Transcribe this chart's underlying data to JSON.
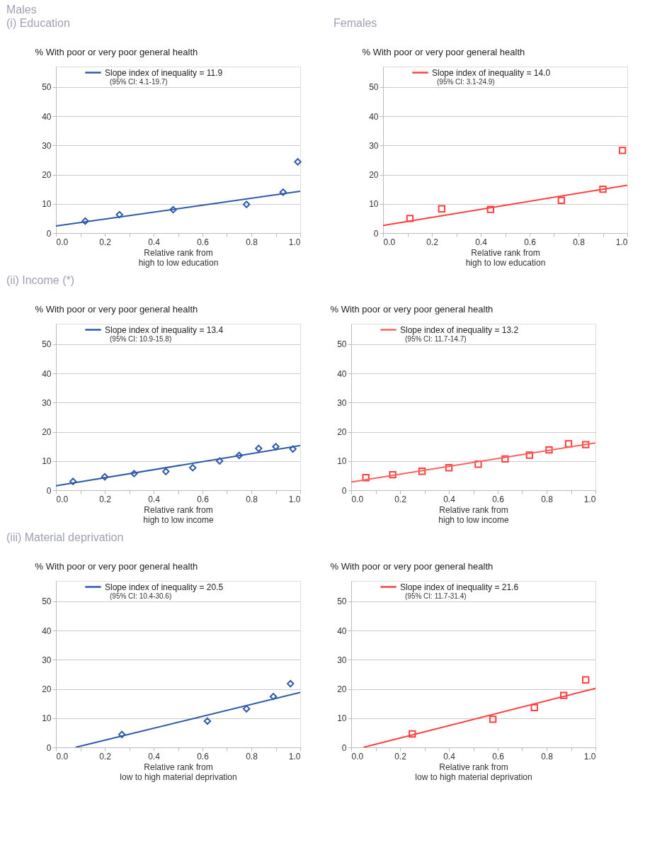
{
  "chart_data": [
    {
      "type": "scatter",
      "title": "Males",
      "subtitle": "(i) Education",
      "ylabel": "% With poor or very poor general health",
      "xlabel": "Relative rank from\nhigh to low education",
      "xlim": [
        0,
        1
      ],
      "ylim": [
        0,
        57
      ],
      "xticks": [
        {
          "value": 0,
          "label": "0.0"
        },
        {
          "value": 0.1,
          "label": null
        },
        {
          "value": 0.2,
          "label": "0.2"
        },
        {
          "value": 0.3,
          "label": null
        },
        {
          "value": 0.4,
          "label": "0.4"
        },
        {
          "value": 0.5,
          "label": null
        },
        {
          "value": 0.6,
          "label": "0.6"
        },
        {
          "value": 0.7,
          "label": null
        },
        {
          "value": 0.8,
          "label": "0.8"
        },
        {
          "value": 0.9,
          "label": null
        },
        {
          "value": 1,
          "label": "1.0"
        }
      ],
      "yticks": [
        0,
        10,
        20,
        30,
        40,
        50
      ],
      "grid": "y",
      "legend": "top",
      "annotations": [
        "(95% CI:  4.1-19.7)"
      ],
      "series": [
        {
          "marker": "diamond",
          "color": "#2e5aa8",
          "x": [
            0.12,
            0.26,
            0.48,
            0.78,
            0.93,
            0.99
          ],
          "values": [
            4.1,
            6.3,
            8.0,
            9.8,
            14.0,
            24.4
          ]
        },
        {
          "type": "line",
          "marker": "none",
          "name": "Slope index of inequality = 11.9",
          "color": "#2e5aa8",
          "x": [
            0,
            1
          ],
          "values": [
            2.4,
            14.3
          ]
        }
      ]
    },
    {
      "type": "scatter",
      "title": "Females",
      "ylabel": "% With poor or very poor general health",
      "xlabel": "Relative rank from\nhigh to low education",
      "xlim": [
        0,
        1
      ],
      "ylim": [
        0,
        57
      ],
      "xticks": [
        {
          "value": 0,
          "label": "0.0"
        },
        {
          "value": 0.1,
          "label": null
        },
        {
          "value": 0.2,
          "label": "0.2"
        },
        {
          "value": 0.3,
          "label": null
        },
        {
          "value": 0.4,
          "label": "0.4"
        },
        {
          "value": 0.5,
          "label": null
        },
        {
          "value": 0.6,
          "label": "0.6"
        },
        {
          "value": 0.7,
          "label": null
        },
        {
          "value": 0.8,
          "label": "0.8"
        },
        {
          "value": 0.9,
          "label": null
        },
        {
          "value": 1,
          "label": "1.0"
        }
      ],
      "yticks": [
        0,
        10,
        20,
        30,
        40,
        50
      ],
      "grid": "y",
      "legend": "top",
      "annotations": [
        "(95% CI:  3.1-24.9)"
      ],
      "series": [
        {
          "marker": "square",
          "color": "#ff4040",
          "x": [
            0.11,
            0.24,
            0.44,
            0.73,
            0.9,
            0.98
          ],
          "values": [
            5.0,
            8.3,
            8.1,
            11.2,
            15.0,
            28.3
          ]
        },
        {
          "type": "line",
          "marker": "none",
          "name": "Slope index of inequality = 14.0",
          "color": "#ff4040",
          "x": [
            0,
            1
          ],
          "values": [
            2.6,
            16.4
          ]
        }
      ]
    },
    {
      "type": "scatter",
      "title": "(ii) Income (*)",
      "ylabel": "% With poor or very poor general health",
      "xlabel": "Relative rank from\nhigh to low income",
      "xlim": [
        0,
        1
      ],
      "ylim": [
        0,
        57
      ],
      "xticks": [
        {
          "value": 0,
          "label": "0.0"
        },
        {
          "value": 0.1,
          "label": null
        },
        {
          "value": 0.2,
          "label": "0.2"
        },
        {
          "value": 0.3,
          "label": null
        },
        {
          "value": 0.4,
          "label": "0.4"
        },
        {
          "value": 0.5,
          "label": null
        },
        {
          "value": 0.6,
          "label": "0.6"
        },
        {
          "value": 0.7,
          "label": null
        },
        {
          "value": 0.8,
          "label": "0.8"
        },
        {
          "value": 0.9,
          "label": null
        },
        {
          "value": 1,
          "label": "1.0"
        }
      ],
      "yticks": [
        0,
        10,
        20,
        30,
        40,
        50
      ],
      "grid": "y",
      "legend": "top",
      "annotations": [
        "(95% CI:  10.9-15.8)"
      ],
      "series": [
        {
          "marker": "diamond",
          "color": "#2e5aa8",
          "x": [
            0.07,
            0.2,
            0.32,
            0.45,
            0.56,
            0.67,
            0.75,
            0.83,
            0.9,
            0.97
          ],
          "values": [
            3.0,
            4.6,
            5.7,
            6.4,
            7.7,
            10.0,
            11.9,
            14.3,
            14.9,
            14.1
          ]
        },
        {
          "type": "line",
          "marker": "none",
          "name": "Slope index of inequality = 13.4",
          "color": "#2e5aa8",
          "x": [
            0,
            1
          ],
          "values": [
            1.5,
            15.3
          ]
        }
      ]
    },
    {
      "type": "scatter",
      "ylabel": "% With poor or very poor general health",
      "xlabel": "Relative rank from\nhigh to low income",
      "xlim": [
        0,
        1
      ],
      "ylim": [
        0,
        57
      ],
      "xticks": [
        {
          "value": 0,
          "label": "0.0"
        },
        {
          "value": 0.1,
          "label": null
        },
        {
          "value": 0.2,
          "label": "0.2"
        },
        {
          "value": 0.3,
          "label": null
        },
        {
          "value": 0.4,
          "label": "0.4"
        },
        {
          "value": 0.5,
          "label": null
        },
        {
          "value": 0.6,
          "label": "0.6"
        },
        {
          "value": 0.7,
          "label": null
        },
        {
          "value": 0.8,
          "label": "0.8"
        },
        {
          "value": 0.9,
          "label": null
        },
        {
          "value": 1,
          "label": "1.0"
        }
      ],
      "yticks": [
        0,
        10,
        20,
        30,
        40,
        50
      ],
      "grid": "y",
      "legend": "top",
      "annotations": [
        "(95% CI:  11.7-14.7)"
      ],
      "series": [
        {
          "marker": "square",
          "color": "#ff4040",
          "x": [
            0.06,
            0.17,
            0.29,
            0.4,
            0.52,
            0.63,
            0.73,
            0.81,
            0.89,
            0.96
          ],
          "values": [
            4.3,
            5.3,
            6.5,
            7.7,
            8.9,
            10.7,
            12.0,
            13.8,
            15.9,
            15.6
          ]
        },
        {
          "type": "line",
          "marker": "none",
          "name": "Slope index of inequality = 13.2",
          "color": "#ff6060",
          "x": [
            0,
            1
          ],
          "values": [
            2.8,
            16.2
          ]
        }
      ]
    },
    {
      "type": "scatter",
      "title": "(iii) Material deprivation",
      "ylabel": "% With poor or very poor general health",
      "xlabel": "Relative rank from\nlow  to high material deprivation",
      "xlim": [
        0,
        1
      ],
      "ylim": [
        0,
        57
      ],
      "xticks": [
        {
          "value": 0,
          "label": "0.0"
        },
        {
          "value": 0.1,
          "label": null
        },
        {
          "value": 0.2,
          "label": "0.2"
        },
        {
          "value": 0.3,
          "label": null
        },
        {
          "value": 0.4,
          "label": "0.4"
        },
        {
          "value": 0.5,
          "label": null
        },
        {
          "value": 0.6,
          "label": "0.6"
        },
        {
          "value": 0.7,
          "label": null
        },
        {
          "value": 0.8,
          "label": "0.8"
        },
        {
          "value": 0.9,
          "label": null
        },
        {
          "value": 1,
          "label": "1.0"
        }
      ],
      "yticks": [
        0,
        10,
        20,
        30,
        40,
        50
      ],
      "grid": "y",
      "legend": "top",
      "annotations": [
        "(95% CI:  10.4-30.6)"
      ],
      "series": [
        {
          "marker": "diamond",
          "color": "#2e5aa8",
          "x": [
            0.27,
            0.62,
            0.78,
            0.89,
            0.96
          ],
          "values": [
            4.4,
            9.0,
            13.2,
            17.4,
            21.8
          ]
        },
        {
          "type": "line",
          "marker": "none",
          "name": "Slope index of inequality = 20.5",
          "color": "#2e5aa8",
          "x": [
            0.08,
            1
          ],
          "values": [
            0,
            18.8
          ]
        }
      ]
    },
    {
      "type": "scatter",
      "ylabel": "% With poor or very poor general health",
      "xlabel": "Relative rank from\nlow  to high material deprivation",
      "xlim": [
        0,
        1
      ],
      "ylim": [
        0,
        57
      ],
      "xticks": [
        {
          "value": 0,
          "label": "0.0"
        },
        {
          "value": 0.1,
          "label": null
        },
        {
          "value": 0.2,
          "label": "0.2"
        },
        {
          "value": 0.3,
          "label": null
        },
        {
          "value": 0.4,
          "label": "0.4"
        },
        {
          "value": 0.5,
          "label": null
        },
        {
          "value": 0.6,
          "label": "0.6"
        },
        {
          "value": 0.7,
          "label": null
        },
        {
          "value": 0.8,
          "label": "0.8"
        },
        {
          "value": 0.9,
          "label": null
        },
        {
          "value": 1,
          "label": "1.0"
        }
      ],
      "yticks": [
        0,
        10,
        20,
        30,
        40,
        50
      ],
      "grid": "y",
      "legend": "top",
      "annotations": [
        "(95% CI:  11.7-31.4)"
      ],
      "series": [
        {
          "marker": "square",
          "color": "#ff4040",
          "x": [
            0.25,
            0.58,
            0.75,
            0.87,
            0.96
          ],
          "values": [
            4.6,
            9.6,
            13.6,
            17.8,
            23.1
          ]
        },
        {
          "type": "line",
          "marker": "none",
          "name": "Slope index of inequality = 21.6",
          "color": "#ff4040",
          "x": [
            0.05,
            1
          ],
          "values": [
            0,
            20.2
          ]
        }
      ]
    }
  ]
}
